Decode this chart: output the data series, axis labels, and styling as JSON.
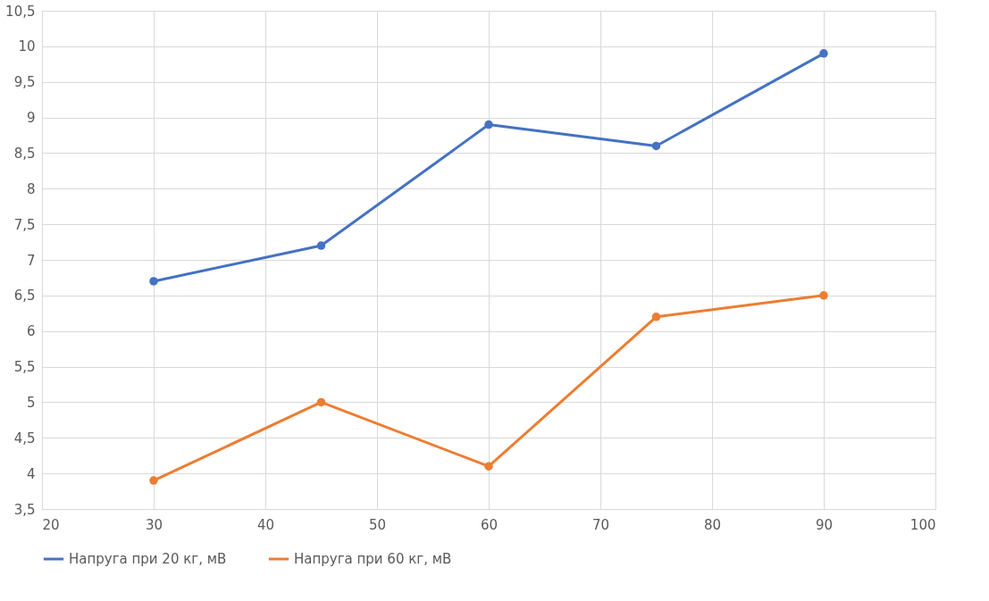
{
  "chart_data": {
    "type": "line",
    "x": [
      30,
      45,
      60,
      75,
      90
    ],
    "series": [
      {
        "name": "Напруга при 20 кг, мВ",
        "color": "#4472c4",
        "values": [
          6.7,
          7.2,
          8.9,
          8.6,
          9.9
        ]
      },
      {
        "name": "Напруга при 60 кг, мВ",
        "color": "#ed7d31",
        "values": [
          3.9,
          5.0,
          4.1,
          6.2,
          6.5
        ]
      }
    ],
    "xlim": [
      20,
      100
    ],
    "xticks": [
      20,
      30,
      40,
      50,
      60,
      70,
      80,
      90,
      100
    ],
    "ylim": [
      3.5,
      10.5
    ],
    "yticks": [
      {
        "value": 3.5,
        "label": "3,5"
      },
      4,
      {
        "value": 4.5,
        "label": "4,5"
      },
      5,
      {
        "value": 5.5,
        "label": "5,5"
      },
      6,
      {
        "value": 6.5,
        "label": "6,5"
      },
      7,
      {
        "value": 7.5,
        "label": "7,5"
      },
      8,
      {
        "value": 8.5,
        "label": "8,5"
      },
      9,
      {
        "value": 9.5,
        "label": "9,5"
      },
      10,
      {
        "value": 10.5,
        "label": "10,5"
      }
    ],
    "grid": true,
    "legend": "bottom",
    "marker": "circle",
    "line_style": "solid"
  }
}
